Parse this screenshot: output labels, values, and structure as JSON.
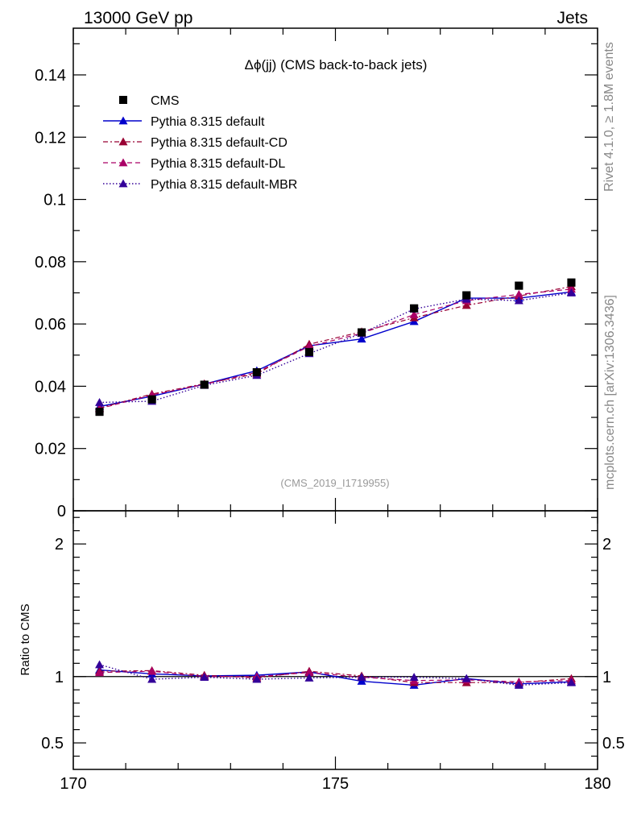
{
  "header": {
    "left_label": "13000 GeV pp",
    "right_label": "Jets"
  },
  "side_labels": {
    "rivet": "Rivet 4.1.0, ≥ 1.8M events",
    "mcplots": "mcplots.cern.ch [arXiv:1306.3436]"
  },
  "chart_data": {
    "type": "line",
    "title": "Δϕ(jj) (CMS back-to-back jets)",
    "watermark": "(CMS_2019_I1719955)",
    "xlabel": "",
    "ylabel": "",
    "xlim": [
      170,
      180
    ],
    "ylim": [
      0,
      0.155
    ],
    "x": [
      170.5,
      171.5,
      172.5,
      173.5,
      174.5,
      175.5,
      176.5,
      177.5,
      178.5,
      179.5
    ],
    "x_ticks": [
      "170",
      "175",
      "180"
    ],
    "y_ticks": [
      "0",
      "0.02",
      "0.04",
      "0.06",
      "0.08",
      "0.1",
      "0.12",
      "0.14"
    ],
    "colors": {
      "cms": "#000000",
      "default": "#0000cc",
      "cd": "#990033",
      "dl": "#aa0066",
      "mbr": "#330099"
    },
    "series": [
      {
        "name": "CMS",
        "style": "marker",
        "values": [
          0.0318,
          0.0358,
          0.0405,
          0.0445,
          0.051,
          0.0573,
          0.065,
          0.0692,
          0.0723,
          0.0733
        ]
      },
      {
        "name": "Pythia 8.315 default",
        "style": "solid",
        "values": [
          0.0335,
          0.0368,
          0.0407,
          0.045,
          0.053,
          0.0552,
          0.0608,
          0.0683,
          0.0683,
          0.0703
        ]
      },
      {
        "name": "Pythia 8.315 default-CD",
        "style": "dashdot",
        "values": [
          0.033,
          0.0375,
          0.0408,
          0.044,
          0.0535,
          0.0575,
          0.062,
          0.066,
          0.069,
          0.072
        ]
      },
      {
        "name": "Pythia 8.315 default-DL",
        "style": "dashed",
        "values": [
          0.0328,
          0.0372,
          0.0406,
          0.0445,
          0.0528,
          0.057,
          0.063,
          0.0675,
          0.0695,
          0.0712
        ]
      },
      {
        "name": "Pythia 8.315 default-MBR",
        "style": "dotted",
        "values": [
          0.0348,
          0.0352,
          0.0403,
          0.0435,
          0.0505,
          0.057,
          0.0648,
          0.068,
          0.0675,
          0.07
        ]
      }
    ],
    "ratio": {
      "ylabel": "Ratio to CMS",
      "ylim": [
        0.3,
        2.25
      ],
      "y_ticks": [
        "0.5",
        "1",
        "2"
      ],
      "series": [
        {
          "name": "Pythia 8.315 default",
          "values": [
            1.05,
            1.02,
            1.005,
            1.01,
            1.035,
            0.965,
            0.935,
            0.985,
            0.945,
            0.96
          ]
        },
        {
          "name": "Pythia 8.315 default-CD",
          "values": [
            1.04,
            1.045,
            1.01,
            0.99,
            1.04,
            1.005,
            0.955,
            0.955,
            0.955,
            0.985
          ]
        },
        {
          "name": "Pythia 8.315 default-DL",
          "values": [
            1.03,
            1.04,
            1.0,
            1.0,
            1.03,
            0.995,
            0.97,
            0.975,
            0.96,
            0.97
          ]
        },
        {
          "name": "Pythia 8.315 default-MBR",
          "values": [
            1.09,
            0.98,
            0.995,
            0.98,
            0.99,
            0.995,
            0.995,
            0.985,
            0.935,
            0.955
          ]
        }
      ]
    }
  }
}
